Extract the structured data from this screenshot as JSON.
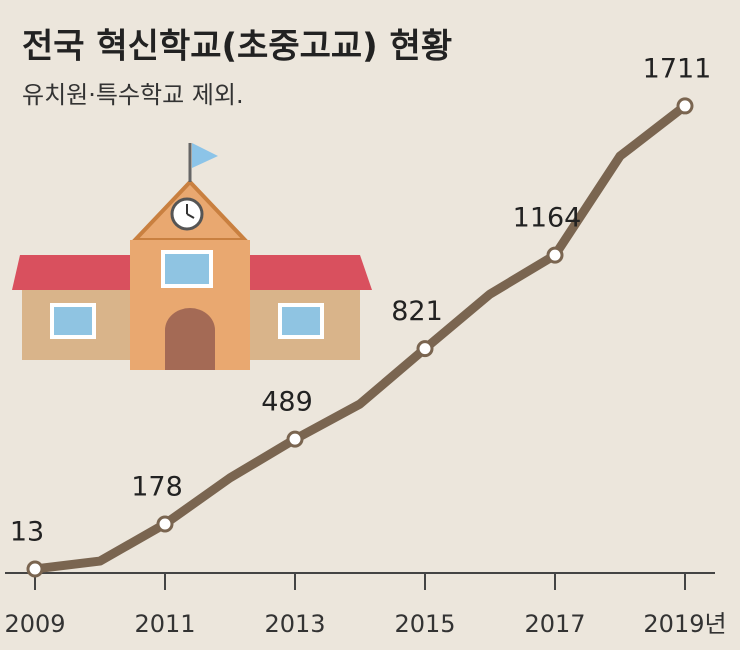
{
  "chart_data": {
    "type": "line",
    "title": "전국 혁신학교(초중고교) 현황",
    "subtitle": "유치원·특수학교 제외.",
    "categories": [
      "2009",
      null,
      "2011",
      null,
      "2013",
      null,
      "2015",
      null,
      "2017",
      null,
      "2019년"
    ],
    "series": [
      {
        "name": "혁신학교",
        "color": "#7a6550",
        "values": [
          13,
          42,
          178,
          347,
          489,
          618,
          821,
          1021,
          1164,
          1527,
          1711
        ],
        "value_labels": [
          "13",
          null,
          "178",
          null,
          "489",
          null,
          "821",
          null,
          "1164",
          null,
          "1711"
        ]
      }
    ],
    "ylim": [
      0,
      1900
    ]
  }
}
